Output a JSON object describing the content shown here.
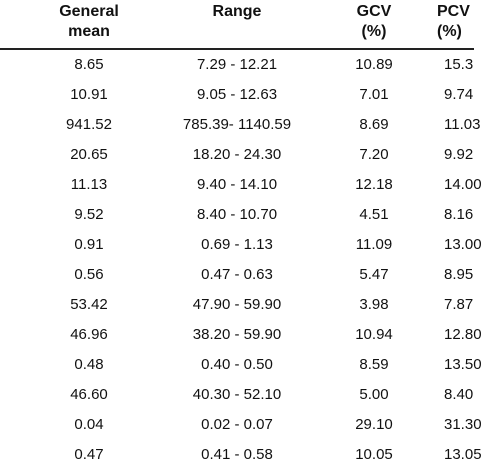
{
  "headers": {
    "mean": [
      "General",
      "mean"
    ],
    "range": [
      "Range",
      ""
    ],
    "gcv": [
      "GCV",
      "(%)"
    ],
    "pcv": [
      "PCV",
      "(%)"
    ]
  },
  "rows": [
    {
      "mean": "8.65",
      "range": "7.29 - 12.21",
      "gcv": "10.89",
      "pcv": "15.3"
    },
    {
      "mean": "10.91",
      "range": "9.05 - 12.63",
      "gcv": "7.01",
      "pcv": "9.74"
    },
    {
      "mean": "941.52",
      "range": "785.39- 1140.59",
      "gcv": "8.69",
      "pcv": "11.03"
    },
    {
      "mean": "20.65",
      "range": "18.20 - 24.30",
      "gcv": "7.20",
      "pcv": "9.92"
    },
    {
      "mean": "11.13",
      "range": "9.40 - 14.10",
      "gcv": "12.18",
      "pcv": "14.00"
    },
    {
      "mean": "9.52",
      "range": "8.40 - 10.70",
      "gcv": "4.51",
      "pcv": "8.16"
    },
    {
      "mean": "0.91",
      "range": "0.69 - 1.13",
      "gcv": "11.09",
      "pcv": "13.00"
    },
    {
      "mean": "0.56",
      "range": "0.47 - 0.63",
      "gcv": "5.47",
      "pcv": "8.95"
    },
    {
      "mean": "53.42",
      "range": "47.90 - 59.90",
      "gcv": "3.98",
      "pcv": "7.87"
    },
    {
      "mean": "46.96",
      "range": "38.20 - 59.90",
      "gcv": "10.94",
      "pcv": "12.80"
    },
    {
      "mean": "0.48",
      "range": "0.40 - 0.50",
      "gcv": "8.59",
      "pcv": "13.50"
    },
    {
      "mean": "46.60",
      "range": "40.30 - 52.10",
      "gcv": "5.00",
      "pcv": "8.40"
    },
    {
      "mean": "0.04",
      "range": "0.02 - 0.07",
      "gcv": "29.10",
      "pcv": "31.30"
    },
    {
      "mean": "0.47",
      "range": "0.41 - 0.58",
      "gcv": "10.05",
      "pcv": "13.05"
    }
  ]
}
